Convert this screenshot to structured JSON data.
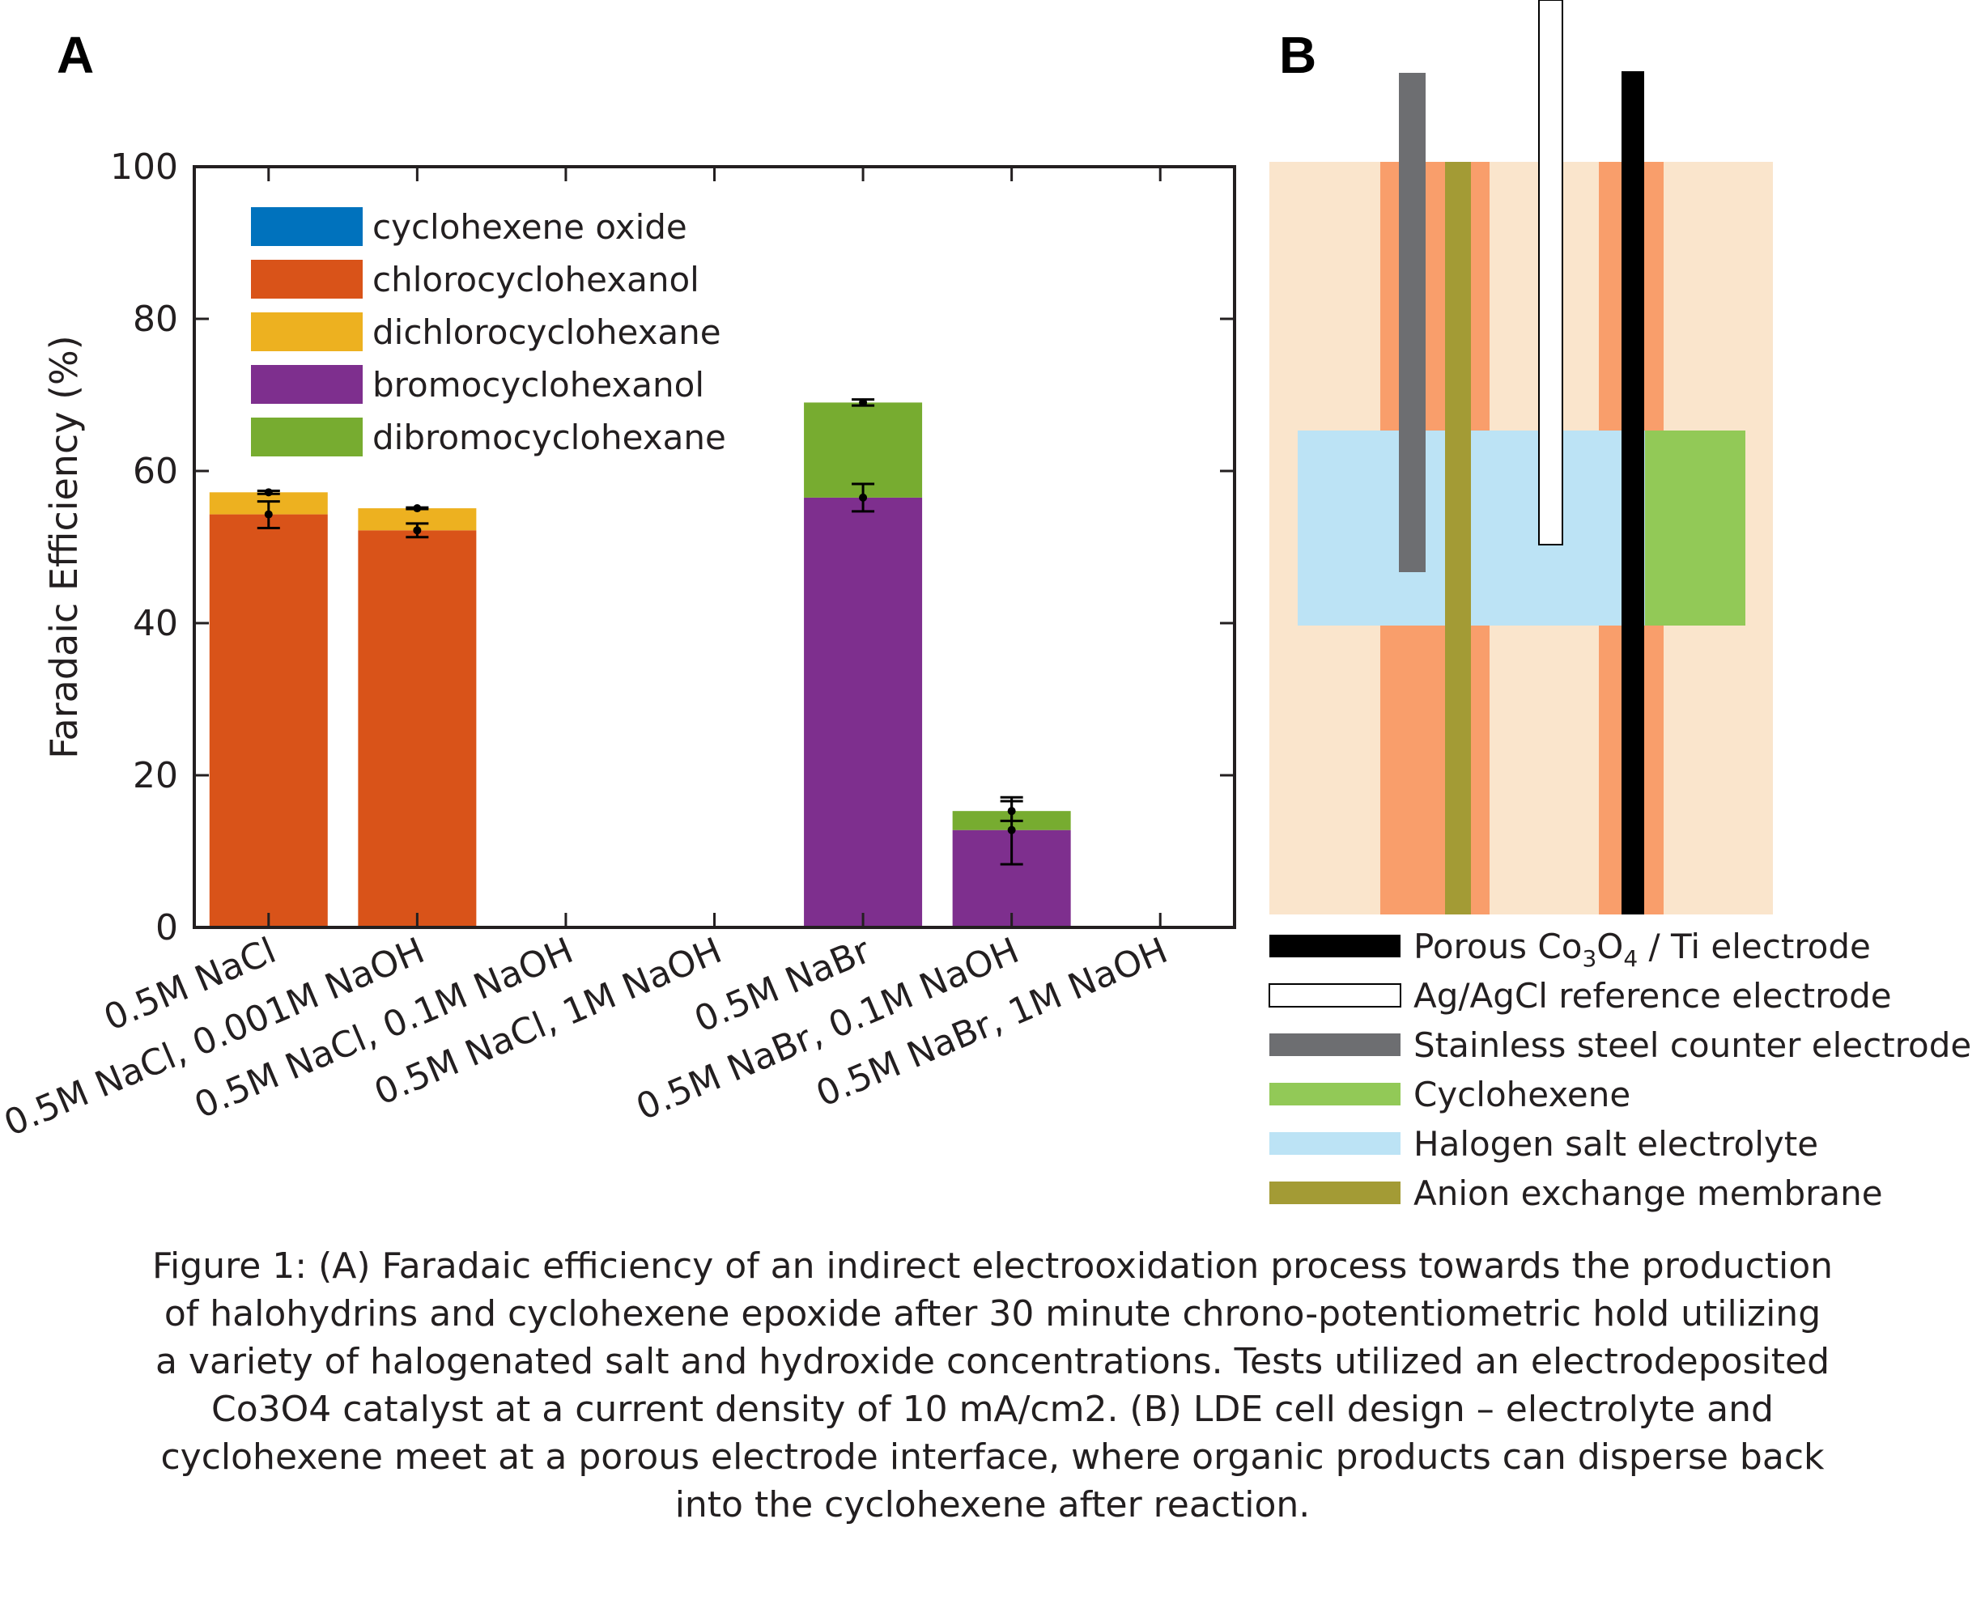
{
  "panel_a": {
    "label": "A"
  },
  "panel_b": {
    "label": "B"
  },
  "colors": {
    "cyclohexene_oxide": "#0072bd",
    "chlorocyclohexanol": "#d95319",
    "dichlorocyclohexane": "#edb120",
    "bromocyclohexanol": "#7e2f8e",
    "dibromocyclohexane": "#77ac30",
    "cell_background": "#fae5cc",
    "porous_layer": "#f99e6b",
    "electrolyte": "#bce3f5",
    "cyclohexene": "#92c957",
    "membrane": "#a39b35",
    "counter_electrode": "#6d6e71",
    "working_electrode": "#000000",
    "reference_electrode": "#ffffff"
  },
  "chart_data": {
    "type": "bar",
    "stacked": true,
    "ylabel": "Faradaic Efficiency (%)",
    "xlabel": "",
    "ylim": [
      0,
      100
    ],
    "yticks": [
      "0",
      "20",
      "40",
      "60",
      "80",
      "100"
    ],
    "legend_placement": "top-left",
    "categories": [
      "0.5M NaCl",
      "0.5M NaCl, 0.001M NaOH",
      "0.5M NaCl, 0.1M NaOH",
      "0.5M NaCl, 1M NaOH",
      "0.5M NaBr",
      "0.5M NaBr, 0.1M NaOH",
      "0.5M NaBr, 1M NaOH"
    ],
    "series": [
      {
        "name": "cyclohexene oxide",
        "color": "#0072bd",
        "values": [
          0,
          0,
          0,
          0,
          0,
          0,
          0
        ]
      },
      {
        "name": "chlorocyclohexanol",
        "color": "#d95319",
        "values": [
          54.3,
          52.2,
          0,
          0,
          0,
          0,
          0
        ]
      },
      {
        "name": "dichlorocyclohexane",
        "color": "#edb120",
        "values": [
          2.9,
          2.9,
          0,
          0,
          0,
          0,
          0
        ]
      },
      {
        "name": "bromocyclohexanol",
        "color": "#7e2f8e",
        "values": [
          0,
          0,
          0,
          0,
          56.5,
          12.8,
          0
        ]
      },
      {
        "name": "dibromocyclohexane",
        "color": "#77ac30",
        "values": [
          0,
          0,
          0,
          0,
          12.5,
          2.5,
          0
        ]
      }
    ],
    "error_bars": [
      {
        "category": 0,
        "center": 54.3,
        "low": 52.5,
        "high": 56.0
      },
      {
        "category": 0,
        "center": 57.2,
        "low": 57.0,
        "high": 57.4
      },
      {
        "category": 1,
        "center": 52.2,
        "low": 51.3,
        "high": 53.1
      },
      {
        "category": 1,
        "center": 55.1,
        "low": 55.0,
        "high": 55.2
      },
      {
        "category": 4,
        "center": 56.5,
        "low": 54.7,
        "high": 58.3
      },
      {
        "category": 4,
        "center": 69.0,
        "low": 68.6,
        "high": 69.4
      },
      {
        "category": 5,
        "center": 12.8,
        "low": 8.3,
        "high": 17.1
      },
      {
        "category": 5,
        "center": 15.3,
        "low": 14.0,
        "high": 16.6
      }
    ]
  },
  "diagram_legend": [
    {
      "label_main": "Porous Co",
      "sub1": "3",
      "mid": "O",
      "sub2": "4",
      "tail": " / Ti electrode",
      "swatch": "working_electrode"
    },
    {
      "label": "Ag/AgCl reference electrode",
      "swatch": "reference_electrode"
    },
    {
      "label": "Stainless steel counter electrode",
      "swatch": "counter_electrode"
    },
    {
      "label": "Cyclohexene",
      "swatch": "cyclohexene"
    },
    {
      "label": "Halogen salt electrolyte",
      "swatch": "electrolyte"
    },
    {
      "label": "Anion exchange membrane",
      "swatch": "membrane"
    }
  ],
  "caption": [
    "Figure 1: (A) Faradaic efficiency of an indirect electrooxidation process towards the production",
    "of halohydrins and cyclohexene epoxide after 30 minute chrono-potentiometric hold utilizing",
    "a variety of halogenated salt and hydroxide concentrations. Tests utilized an electrodeposited",
    "Co3O4 catalyst at a current density of 10 mA/cm2. (B) LDE cell design – electrolyte and",
    "cyclohexene meet at a porous electrode interface, where organic products can disperse back",
    "into the cyclohexene after reaction."
  ]
}
